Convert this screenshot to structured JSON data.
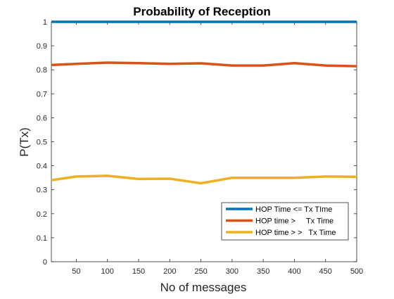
{
  "chart_data": {
    "type": "line",
    "title": "Probability of Reception",
    "xlabel": "No of messages",
    "ylabel": "P(Tx)",
    "xlim": [
      10,
      500
    ],
    "ylim": [
      0,
      1
    ],
    "x_ticks": [
      50,
      100,
      150,
      200,
      250,
      300,
      350,
      400,
      450,
      500
    ],
    "y_ticks": [
      0,
      0.1,
      0.2,
      0.3,
      0.4,
      0.5,
      0.6,
      0.7,
      0.8,
      0.9,
      1
    ],
    "y_tick_labels": [
      "0",
      "0.1",
      "0.2",
      "0.3",
      "0.4",
      "0.5",
      "0.6",
      "0.7",
      "0.8",
      "0.9",
      "1"
    ],
    "x": [
      10,
      50,
      100,
      150,
      200,
      250,
      300,
      350,
      400,
      450,
      500
    ],
    "series": [
      {
        "name": "HOP Time <= Tx TIme",
        "color": "#0072BD",
        "values": [
          1,
          1,
          1,
          1,
          1,
          1,
          1,
          1,
          1,
          1,
          1
        ]
      },
      {
        "name": "HOP time >     Tx Time",
        "color": "#D95319",
        "values": [
          0.82,
          0.825,
          0.83,
          0.828,
          0.825,
          0.827,
          0.818,
          0.818,
          0.828,
          0.818,
          0.815
        ]
      },
      {
        "name": "HOP time > >   Tx Time",
        "color": "#EDB120",
        "values": [
          0.34,
          0.355,
          0.358,
          0.345,
          0.346,
          0.327,
          0.35,
          0.35,
          0.35,
          0.355,
          0.354
        ]
      }
    ],
    "grid": false,
    "legend_position": "bottom-right"
  }
}
